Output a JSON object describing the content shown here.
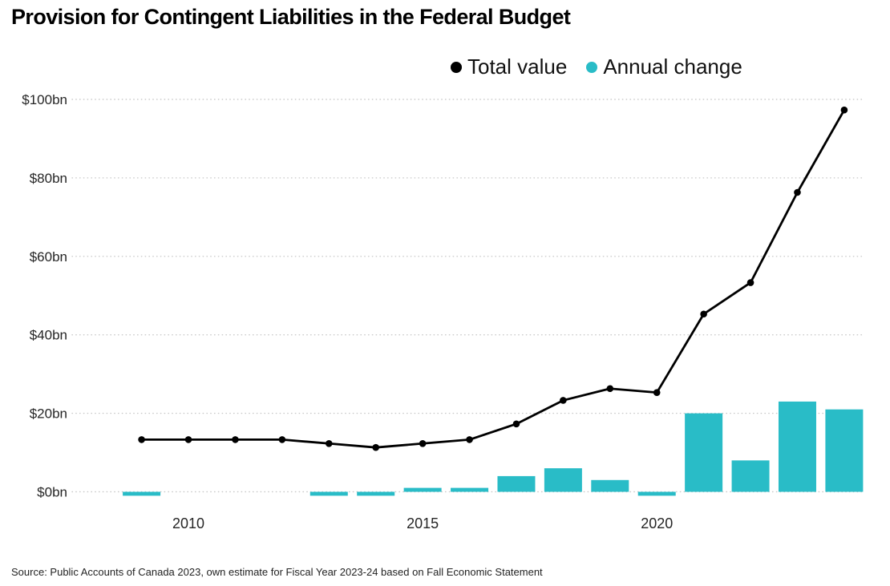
{
  "header": {
    "title": "Provision for Contingent Liabilities in the Federal Budget"
  },
  "legend": {
    "items": [
      {
        "label": "Total value",
        "color": "#000000"
      },
      {
        "label": "Annual change",
        "color": "#29bcc7"
      }
    ]
  },
  "footer": {
    "source": "Source: Public Accounts of Canada 2023, own estimate for Fiscal Year 2023-24 based on Fall Economic Statement"
  },
  "colors": {
    "line": "#000000",
    "bar": "#29bcc7",
    "grid": "#c9c9c9",
    "axis_text": "#262626",
    "background": "#ffffff"
  },
  "chart_data": {
    "type": "line+bar",
    "title": "Provision for Contingent Liabilities in the Federal Budget",
    "x": [
      2009,
      2010,
      2011,
      2012,
      2013,
      2014,
      2015,
      2016,
      2017,
      2018,
      2019,
      2020,
      2021,
      2022,
      2023,
      2024
    ],
    "series": [
      {
        "name": "Total value",
        "type": "line",
        "color": "#000000",
        "values": [
          13.3,
          13.3,
          13.3,
          13.3,
          12.3,
          11.3,
          12.3,
          13.3,
          17.3,
          23.3,
          26.3,
          25.3,
          45.3,
          53.3,
          76.3,
          97.3
        ]
      },
      {
        "name": "Annual change",
        "type": "bar",
        "color": "#29bcc7",
        "values": [
          -1,
          0,
          0,
          0,
          -1,
          -1,
          1,
          1,
          4,
          6,
          3,
          -1,
          20,
          8,
          23,
          21
        ]
      }
    ],
    "xlabel": "",
    "ylabel": "",
    "unit": "$bn",
    "ylim": [
      0,
      100
    ],
    "grid": "dotted-horizontal",
    "legend_position": "top-right",
    "y_ticks": [
      {
        "value": 0,
        "label": "$0bn"
      },
      {
        "value": 20,
        "label": "$20bn"
      },
      {
        "value": 40,
        "label": "$40bn"
      },
      {
        "value": 60,
        "label": "$60bn"
      },
      {
        "value": 80,
        "label": "$80bn"
      },
      {
        "value": 100,
        "label": "$100bn"
      }
    ],
    "x_ticks": [
      {
        "value": 2010,
        "label": "2010"
      },
      {
        "value": 2015,
        "label": "2015"
      },
      {
        "value": 2020,
        "label": "2020"
      }
    ]
  }
}
